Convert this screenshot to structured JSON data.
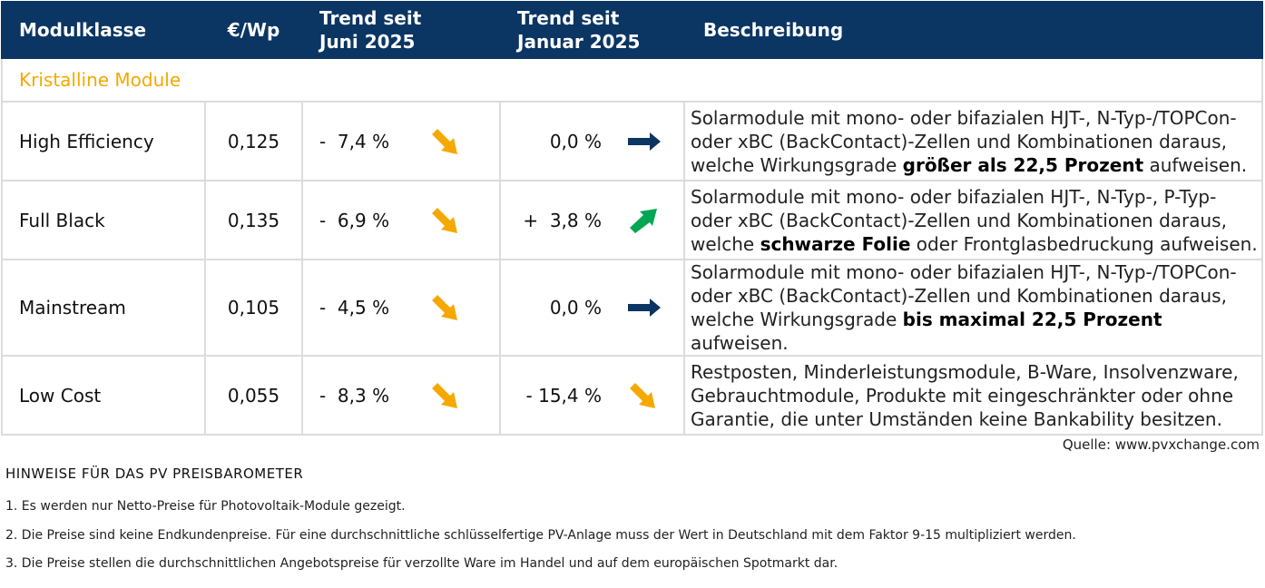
{
  "header": {
    "col1": "Modulklasse",
    "col2": "€/Wp",
    "col3": "Trend seit\nJuni 2025",
    "col3a": "Trend seit",
    "col3b": "Juni 2025",
    "col4a": "Trend seit",
    "col4b": "Januar 2025",
    "col5": "Beschreibung"
  },
  "category": "Kristalline Module",
  "colors": {
    "header_bg": "#0b3563",
    "accent": "#f5a800",
    "down": "#f5a800",
    "flat": "#0b3563",
    "up": "#00a651"
  },
  "rows": [
    {
      "name": "High Efficiency",
      "price": "0,125",
      "trend_june": "-  7,4 %",
      "trend_june_icon": "arrow-down-right",
      "trend_jan": "0,0 %",
      "trend_jan_icon": "arrow-right",
      "desc": [
        {
          "t": "Solarmodule mit mono- oder bifazialen HJT-, N-Typ-/TOPCon- oder xBC (BackContact)-Zellen und Kombinationen daraus, welche Wirkungsgrade "
        },
        {
          "t": "größer als 22,5 Prozent",
          "b": true
        },
        {
          "t": " aufweisen."
        }
      ]
    },
    {
      "name": "Full Black",
      "price": "0,135",
      "trend_june": "-  6,9 %",
      "trend_june_icon": "arrow-down-right",
      "trend_jan": "+  3,8 %",
      "trend_jan_icon": "arrow-up-right",
      "desc": [
        {
          "t": "Solarmodule mit mono- oder bifazialen HJT-, N-Typ-, P-Typ- oder xBC (BackContact)-Zellen und Kombinationen daraus, welche "
        },
        {
          "t": "schwarze Folie",
          "b": true
        },
        {
          "t": " oder Frontglasbedruckung aufweisen."
        }
      ]
    },
    {
      "name": "Mainstream",
      "price": "0,105",
      "trend_june": "-  4,5 %",
      "trend_june_icon": "arrow-down-right",
      "trend_jan": "0,0 %",
      "trend_jan_icon": "arrow-right",
      "desc": [
        {
          "t": "Solarmodule mit mono- oder bifazialen HJT-, N-Typ-/TOPCon- oder xBC (BackContact)-Zellen und Kombinationen daraus, welche Wirkungsgrade "
        },
        {
          "t": "bis maximal 22,5 Prozent",
          "b": true
        },
        {
          "t": " aufweisen."
        }
      ]
    },
    {
      "name": "Low Cost",
      "price": "0,055",
      "trend_june": "-  8,3 %",
      "trend_june_icon": "arrow-down-right",
      "trend_jan": "- 15,4 %",
      "trend_jan_icon": "arrow-down-right",
      "desc": [
        {
          "t": "Restposten, Minderleistungsmodule, B-Ware, Insolvenzware, Gebrauchtmodule, Produkte mit eingeschränkter oder ohne Garantie, die unter Umständen keine Bankability besitzen."
        }
      ]
    }
  ],
  "source": "Quelle: www.pvxchange.com",
  "notes_title": "HINWEISE FÜR DAS PV PREISBAROMETER",
  "notes": [
    "1.  Es werden nur Netto-Preise für Photovoltaik-Module gezeigt.",
    "2. Die Preise sind keine Endkundenpreise. Für eine durchschnittliche schlüsselfertige PV-Anlage muss der Wert in Deutschland mit dem Faktor 9-15 multipliziert werden.",
    "3. Die Preise stellen die durchschnittlichen Angebotspreise für verzollte Ware im Handel und auf dem europäischen Spotmarkt dar."
  ]
}
